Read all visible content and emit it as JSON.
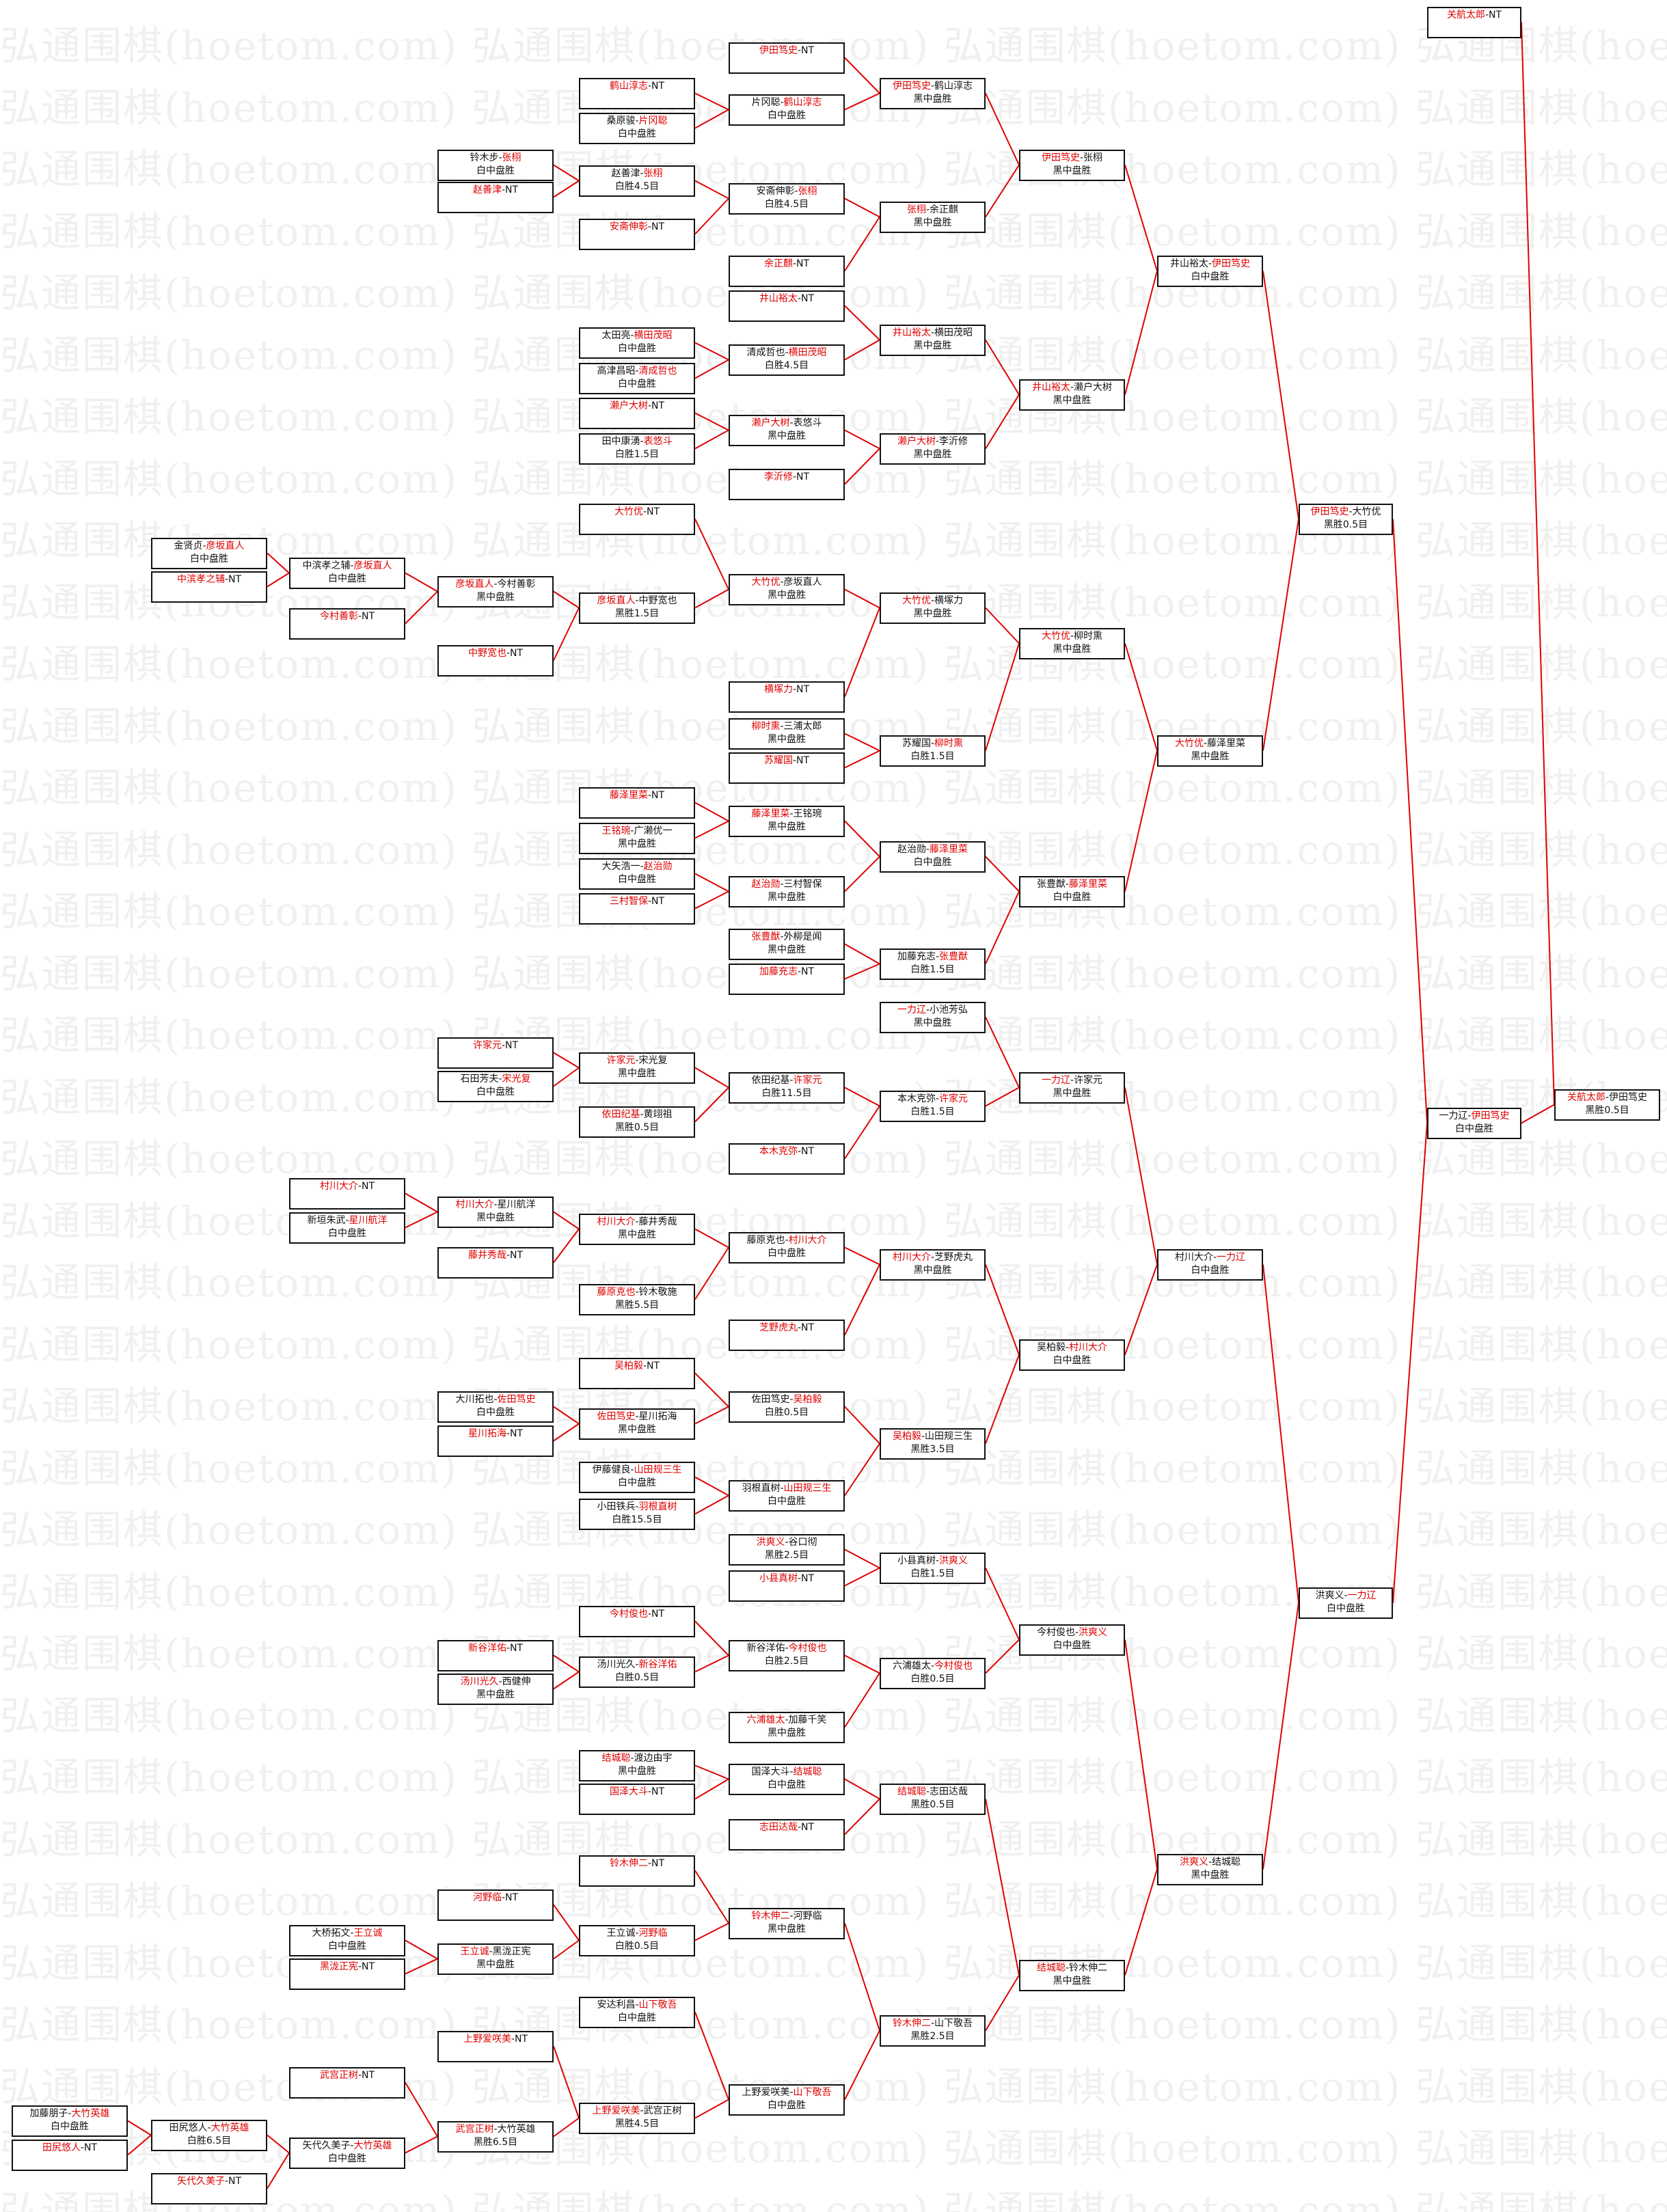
{
  "watermark": "弘通围棋(hoetom.com)",
  "colors": {
    "winner_text": "#e00000",
    "connector": "#e00000",
    "box_border": "#111111",
    "watermark": "#f0f0f0"
  },
  "separator": "-",
  "columns": [
    [
      {
        "p1": "加藤朋子",
        "p2": "大竹英雄",
        "winner": 2,
        "result": "白中盘胜"
      },
      {
        "p1": "田尻悠人",
        "p2": "NT",
        "winner": 1,
        "result": ""
      }
    ],
    [
      {
        "p1": "金贤贞",
        "p2": "彦坂直人",
        "winner": 2,
        "result": "白中盘胜"
      },
      {
        "p1": "中滨孝之辅",
        "p2": "NT",
        "winner": 1,
        "result": ""
      },
      {
        "p1": "田尻悠人",
        "p2": "大竹英雄",
        "winner": 2,
        "result": "白胜6.5目"
      },
      {
        "p1": "矢代久美子",
        "p2": "NT",
        "winner": 1,
        "result": ""
      }
    ],
    [
      {
        "p1": "中滨孝之辅",
        "p2": "彦坂直人",
        "winner": 2,
        "result": "白中盘胜"
      },
      {
        "p1": "今村善彰",
        "p2": "NT",
        "winner": 1,
        "result": ""
      },
      {
        "p1": "村川大介",
        "p2": "NT",
        "winner": 1,
        "result": ""
      },
      {
        "p1": "新垣朱武",
        "p2": "星川航洋",
        "winner": 2,
        "result": "白中盘胜"
      },
      {
        "p1": "大桥拓文",
        "p2": "王立诚",
        "winner": 2,
        "result": "白中盘胜"
      },
      {
        "p1": "黑泷正宪",
        "p2": "NT",
        "winner": 1,
        "result": ""
      },
      {
        "p1": "武宫正树",
        "p2": "NT",
        "winner": 1,
        "result": ""
      },
      {
        "p1": "矢代久美子",
        "p2": "大竹英雄",
        "winner": 2,
        "result": "白中盘胜"
      }
    ],
    [
      {
        "p1": "铃木步",
        "p2": "张栩",
        "winner": 2,
        "result": "白中盘胜"
      },
      {
        "p1": "赵善津",
        "p2": "NT",
        "winner": 1,
        "result": ""
      },
      {
        "p1": "彦坂直人",
        "p2": "今村善彰",
        "winner": 1,
        "result": "黑中盘胜"
      },
      {
        "p1": "中野宽也",
        "p2": "NT",
        "winner": 1,
        "result": ""
      },
      {
        "p1": "许家元",
        "p2": "NT",
        "winner": 1,
        "result": ""
      },
      {
        "p1": "石田芳夫",
        "p2": "宋光复",
        "winner": 2,
        "result": "白中盘胜"
      },
      {
        "p1": "村川大介",
        "p2": "星川航洋",
        "winner": 1,
        "result": "黑中盘胜"
      },
      {
        "p1": "藤井秀哉",
        "p2": "NT",
        "winner": 1,
        "result": ""
      },
      {
        "p1": "大川拓也",
        "p2": "佐田笃史",
        "winner": 2,
        "result": "白中盘胜"
      },
      {
        "p1": "星川拓海",
        "p2": "NT",
        "winner": 1,
        "result": ""
      },
      {
        "p1": "新谷洋佑",
        "p2": "NT",
        "winner": 1,
        "result": ""
      },
      {
        "p1": "汤川光久",
        "p2": "西健伸",
        "winner": 1,
        "result": "黑中盘胜"
      },
      {
        "p1": "河野临",
        "p2": "NT",
        "winner": 1,
        "result": ""
      },
      {
        "p1": "王立诚",
        "p2": "黑泷正宪",
        "winner": 1,
        "result": "黑中盘胜"
      },
      {
        "p1": "上野爱咲美",
        "p2": "NT",
        "winner": 1,
        "result": ""
      },
      {
        "p1": "武宫正树",
        "p2": "大竹英雄",
        "winner": 1,
        "result": "黑胜6.5目"
      }
    ],
    [
      {
        "p1": "鹤山淳志",
        "p2": "NT",
        "winner": 1,
        "result": ""
      },
      {
        "p1": "桑原骏",
        "p2": "片冈聪",
        "winner": 2,
        "result": "白中盘胜"
      },
      {
        "p1": "赵善津",
        "p2": "张栩",
        "winner": 2,
        "result": "白胜4.5目"
      },
      {
        "p1": "安斋伸彰",
        "p2": "NT",
        "winner": 1,
        "result": ""
      },
      {
        "p1": "太田亮",
        "p2": "横田茂昭",
        "winner": 2,
        "result": "白中盘胜"
      },
      {
        "p1": "高津昌昭",
        "p2": "清成哲也",
        "winner": 2,
        "result": "白中盘胜"
      },
      {
        "p1": "濑户大树",
        "p2": "NT",
        "winner": 1,
        "result": ""
      },
      {
        "p1": "田中康湧",
        "p2": "表悠斗",
        "winner": 2,
        "result": "白胜1.5目"
      },
      {
        "p1": "大竹优",
        "p2": "NT",
        "winner": 1,
        "result": ""
      },
      {
        "p1": "彦坂直人",
        "p2": "中野宽也",
        "winner": 1,
        "result": "黑胜1.5目"
      },
      {
        "p1": "藤泽里菜",
        "p2": "NT",
        "winner": 1,
        "result": ""
      },
      {
        "p1": "王铭琬",
        "p2": "广濑优一",
        "winner": 1,
        "result": "黑中盘胜"
      },
      {
        "p1": "大矢浩一",
        "p2": "赵治勋",
        "winner": 2,
        "result": "白中盘胜"
      },
      {
        "p1": "三村智保",
        "p2": "NT",
        "winner": 1,
        "result": ""
      },
      {
        "p1": "许家元",
        "p2": "宋光复",
        "winner": 1,
        "result": "黑中盘胜"
      },
      {
        "p1": "依田纪基",
        "p2": "黄翊祖",
        "winner": 1,
        "result": "黑胜0.5目"
      },
      {
        "p1": "村川大介",
        "p2": "藤井秀哉",
        "winner": 1,
        "result": "黑中盘胜"
      },
      {
        "p1": "藤原克也",
        "p2": "铃木敬施",
        "winner": 1,
        "result": "黑胜5.5目"
      },
      {
        "p1": "吴柏毅",
        "p2": "NT",
        "winner": 1,
        "result": ""
      },
      {
        "p1": "佐田笃史",
        "p2": "星川拓海",
        "winner": 1,
        "result": "黑中盘胜"
      },
      {
        "p1": "伊藤健良",
        "p2": "山田规三生",
        "winner": 2,
        "result": "白中盘胜"
      },
      {
        "p1": "小田铁兵",
        "p2": "羽根直树",
        "winner": 2,
        "result": "白胜15.5目"
      },
      {
        "p1": "今村俊也",
        "p2": "NT",
        "winner": 1,
        "result": ""
      },
      {
        "p1": "汤川光久",
        "p2": "新谷洋佑",
        "winner": 2,
        "result": "白胜0.5目"
      },
      {
        "p1": "结城聪",
        "p2": "渡边由宇",
        "winner": 1,
        "result": "黑中盘胜"
      },
      {
        "p1": "国泽大斗",
        "p2": "NT",
        "winner": 1,
        "result": ""
      },
      {
        "p1": "铃木伸二",
        "p2": "NT",
        "winner": 1,
        "result": ""
      },
      {
        "p1": "王立诚",
        "p2": "河野临",
        "winner": 2,
        "result": "白胜0.5目"
      },
      {
        "p1": "安达利昌",
        "p2": "山下敬吾",
        "winner": 2,
        "result": "白中盘胜"
      },
      {
        "p1": "上野爱咲美",
        "p2": "武宫正树",
        "winner": 1,
        "result": "黑胜4.5目"
      }
    ],
    [
      {
        "p1": "伊田笃史",
        "p2": "NT",
        "winner": 1,
        "result": ""
      },
      {
        "p1": "片冈聪",
        "p2": "鹤山淳志",
        "winner": 2,
        "result": "白中盘胜"
      },
      {
        "p1": "安斋伸彰",
        "p2": "张栩",
        "winner": 2,
        "result": "白胜4.5目"
      },
      {
        "p1": "余正麒",
        "p2": "NT",
        "winner": 1,
        "result": ""
      },
      {
        "p1": "井山裕太",
        "p2": "NT",
        "winner": 1,
        "result": ""
      },
      {
        "p1": "清成哲也",
        "p2": "横田茂昭",
        "winner": 2,
        "result": "白胜4.5目"
      },
      {
        "p1": "濑户大树",
        "p2": "表悠斗",
        "winner": 1,
        "result": "黑中盘胜"
      },
      {
        "p1": "李沂修",
        "p2": "NT",
        "winner": 1,
        "result": ""
      },
      {
        "p1": "大竹优",
        "p2": "彦坂直人",
        "winner": 1,
        "result": "黑中盘胜"
      },
      {
        "p1": "横塚力",
        "p2": "NT",
        "winner": 1,
        "result": ""
      },
      {
        "p1": "柳时熏",
        "p2": "三浦太郎",
        "winner": 1,
        "result": "黑中盘胜"
      },
      {
        "p1": "苏耀国",
        "p2": "NT",
        "winner": 1,
        "result": ""
      },
      {
        "p1": "藤泽里菜",
        "p2": "王铭琬",
        "winner": 1,
        "result": "黑中盘胜"
      },
      {
        "p1": "赵治勋",
        "p2": "三村智保",
        "winner": 1,
        "result": "黑中盘胜"
      },
      {
        "p1": "张豊猷",
        "p2": "外柳是闻",
        "winner": 1,
        "result": "黑中盘胜"
      },
      {
        "p1": "加藤充志",
        "p2": "NT",
        "winner": 1,
        "result": ""
      },
      {
        "p1": "依田纪基",
        "p2": "许家元",
        "winner": 2,
        "result": "白胜11.5目"
      },
      {
        "p1": "本木克弥",
        "p2": "NT",
        "winner": 1,
        "result": ""
      },
      {
        "p1": "藤原克也",
        "p2": "村川大介",
        "winner": 2,
        "result": "白中盘胜"
      },
      {
        "p1": "芝野虎丸",
        "p2": "NT",
        "winner": 1,
        "result": ""
      },
      {
        "p1": "佐田笃史",
        "p2": "吴柏毅",
        "winner": 2,
        "result": "白胜0.5目"
      },
      {
        "p1": "羽根直树",
        "p2": "山田规三生",
        "winner": 2,
        "result": "白中盘胜"
      },
      {
        "p1": "洪爽义",
        "p2": "谷口彻",
        "winner": 1,
        "result": "黑胜2.5目"
      },
      {
        "p1": "小县真树",
        "p2": "NT",
        "winner": 1,
        "result": ""
      },
      {
        "p1": "新谷洋佑",
        "p2": "今村俊也",
        "winner": 2,
        "result": "白胜2.5目"
      },
      {
        "p1": "六浦雄太",
        "p2": "加藤千笑",
        "winner": 1,
        "result": "黑中盘胜"
      },
      {
        "p1": "国泽大斗",
        "p2": "结城聪",
        "winner": 2,
        "result": "白中盘胜"
      },
      {
        "p1": "志田达哉",
        "p2": "NT",
        "winner": 1,
        "result": ""
      },
      {
        "p1": "铃木伸二",
        "p2": "河野临",
        "winner": 1,
        "result": "黑中盘胜"
      },
      {
        "p1": "上野爱咲美",
        "p2": "山下敬吾",
        "winner": 2,
        "result": "白中盘胜"
      }
    ],
    [
      {
        "p1": "伊田笃史",
        "p2": "鹤山淳志",
        "winner": 1,
        "result": "黑中盘胜"
      },
      {
        "p1": "张栩",
        "p2": "余正麒",
        "winner": 1,
        "result": "黑中盘胜"
      },
      {
        "p1": "井山裕太",
        "p2": "横田茂昭",
        "winner": 1,
        "result": "黑中盘胜"
      },
      {
        "p1": "濑户大树",
        "p2": "李沂修",
        "winner": 1,
        "result": "黑中盘胜"
      },
      {
        "p1": "大竹优",
        "p2": "横塚力",
        "winner": 1,
        "result": "黑中盘胜"
      },
      {
        "p1": "苏耀国",
        "p2": "柳时熏",
        "winner": 2,
        "result": "白胜1.5目"
      },
      {
        "p1": "赵治勋",
        "p2": "藤泽里菜",
        "winner": 2,
        "result": "白中盘胜"
      },
      {
        "p1": "加藤充志",
        "p2": "张豊猷",
        "winner": 2,
        "result": "白胜1.5目"
      },
      {
        "p1": "一力辽",
        "p2": "小池芳弘",
        "winner": 1,
        "result": "黑中盘胜"
      },
      {
        "p1": "本木克弥",
        "p2": "许家元",
        "winner": 2,
        "result": "白胜1.5目"
      },
      {
        "p1": "村川大介",
        "p2": "芝野虎丸",
        "winner": 1,
        "result": "黑中盘胜"
      },
      {
        "p1": "吴柏毅",
        "p2": "山田规三生",
        "winner": 1,
        "result": "黑胜3.5目"
      },
      {
        "p1": "小县真树",
        "p2": "洪爽义",
        "winner": 2,
        "result": "白胜1.5目"
      },
      {
        "p1": "六浦雄太",
        "p2": "今村俊也",
        "winner": 2,
        "result": "白胜0.5目"
      },
      {
        "p1": "结城聪",
        "p2": "志田达哉",
        "winner": 1,
        "result": "黑胜0.5目"
      },
      {
        "p1": "铃木伸二",
        "p2": "山下敬吾",
        "winner": 1,
        "result": "黑胜2.5目"
      }
    ],
    [
      {
        "p1": "伊田笃史",
        "p2": "张栩",
        "winner": 1,
        "result": "黑中盘胜"
      },
      {
        "p1": "井山裕太",
        "p2": "濑户大树",
        "winner": 1,
        "result": "黑中盘胜"
      },
      {
        "p1": "大竹优",
        "p2": "柳时熏",
        "winner": 1,
        "result": "黑中盘胜"
      },
      {
        "p1": "张豊猷",
        "p2": "藤泽里菜",
        "winner": 2,
        "result": "白中盘胜"
      },
      {
        "p1": "一力辽",
        "p2": "许家元",
        "winner": 1,
        "result": "黑中盘胜"
      },
      {
        "p1": "吴柏毅",
        "p2": "村川大介",
        "winner": 2,
        "result": "白中盘胜"
      },
      {
        "p1": "今村俊也",
        "p2": "洪爽义",
        "winner": 2,
        "result": "白中盘胜"
      },
      {
        "p1": "结城聪",
        "p2": "铃木伸二",
        "winner": 1,
        "result": "黑中盘胜"
      }
    ],
    [
      {
        "p1": "井山裕太",
        "p2": "伊田笃史",
        "winner": 2,
        "result": "白中盘胜"
      },
      {
        "p1": "大竹优",
        "p2": "藤泽里菜",
        "winner": 1,
        "result": "黑中盘胜"
      },
      {
        "p1": "村川大介",
        "p2": "一力辽",
        "winner": 2,
        "result": "白中盘胜"
      },
      {
        "p1": "洪爽义",
        "p2": "结城聪",
        "winner": 1,
        "result": "黑中盘胜"
      }
    ],
    [
      {
        "p1": "伊田笃史",
        "p2": "大竹优",
        "winner": 1,
        "result": "黑胜0.5目"
      },
      {
        "p1": "洪爽义",
        "p2": "一力辽",
        "winner": 2,
        "result": "白中盘胜"
      }
    ],
    [
      {
        "p1": "关航太郎",
        "p2": "NT",
        "winner": 1,
        "result": ""
      },
      {
        "p1": "一力辽",
        "p2": "伊田笃史",
        "winner": 2,
        "result": "白中盘胜"
      }
    ],
    [
      {
        "p1": "关航太郎",
        "p2": "伊田笃史",
        "winner": 1,
        "result": "黑胜0.5目"
      }
    ]
  ]
}
